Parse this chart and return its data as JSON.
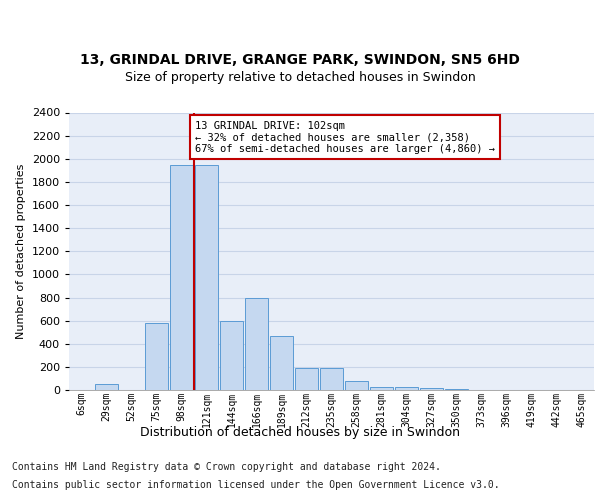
{
  "title1": "13, GRINDAL DRIVE, GRANGE PARK, SWINDON, SN5 6HD",
  "title2": "Size of property relative to detached houses in Swindon",
  "xlabel": "Distribution of detached houses by size in Swindon",
  "ylabel": "Number of detached properties",
  "footer1": "Contains HM Land Registry data © Crown copyright and database right 2024.",
  "footer2": "Contains public sector information licensed under the Open Government Licence v3.0.",
  "categories": [
    "6sqm",
    "29sqm",
    "52sqm",
    "75sqm",
    "98sqm",
    "121sqm",
    "144sqm",
    "166sqm",
    "189sqm",
    "212sqm",
    "235sqm",
    "258sqm",
    "281sqm",
    "304sqm",
    "327sqm",
    "350sqm",
    "373sqm",
    "396sqm",
    "419sqm",
    "442sqm",
    "465sqm"
  ],
  "values": [
    0,
    50,
    0,
    580,
    1950,
    1950,
    600,
    800,
    470,
    190,
    190,
    80,
    30,
    25,
    20,
    5,
    0,
    0,
    0,
    0,
    0
  ],
  "bar_color": "#c5d8f0",
  "bar_edge_color": "#5b9bd5",
  "vline_x_pos": 4.5,
  "vline_color": "#c00000",
  "annotation_text": "13 GRINDAL DRIVE: 102sqm\n← 32% of detached houses are smaller (2,358)\n67% of semi-detached houses are larger (4,860) →",
  "annotation_box_color": "#ffffff",
  "annotation_box_edge": "#c00000",
  "ylim": [
    0,
    2400
  ],
  "yticks": [
    0,
    200,
    400,
    600,
    800,
    1000,
    1200,
    1400,
    1600,
    1800,
    2000,
    2200,
    2400
  ],
  "grid_color": "#c8d4e8",
  "background_color": "#e8eef8",
  "title1_fontsize": 10,
  "title2_fontsize": 9,
  "ylabel_fontsize": 8,
  "xlabel_fontsize": 9,
  "tick_fontsize": 7,
  "footer_fontsize": 7
}
